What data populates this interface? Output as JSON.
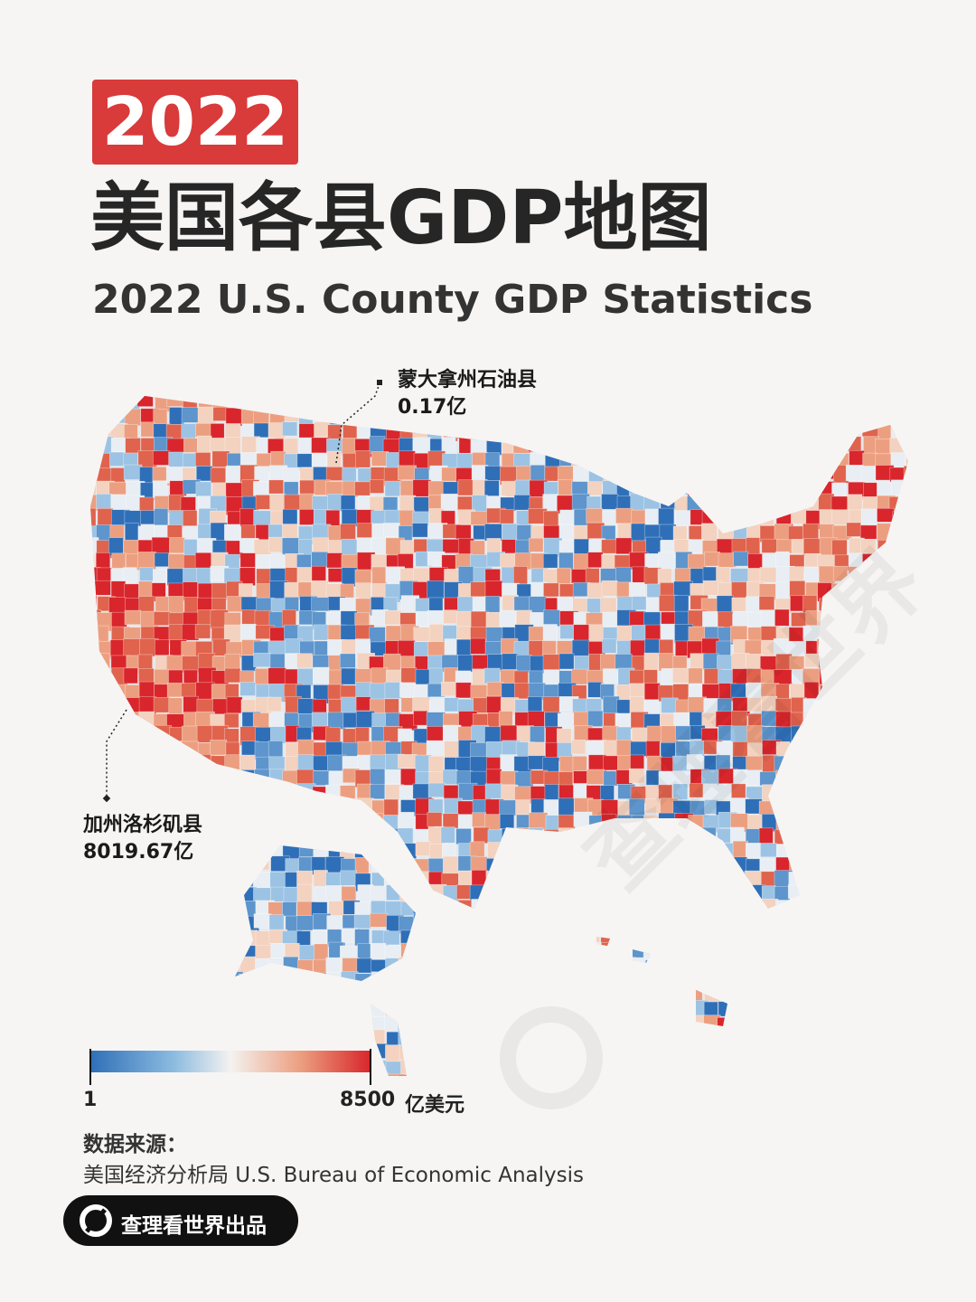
{
  "header": {
    "year": "2022",
    "title": "美国各县GDP地图",
    "subtitle": "2022 U.S. County GDP Statistics"
  },
  "annotations": [
    {
      "name": "蒙大拿州石油县",
      "value": "0.17亿"
    },
    {
      "name": "加州洛杉矶县",
      "value": "8019.67亿"
    }
  ],
  "legend": {
    "min_label": "1",
    "max_label": "8500",
    "unit": "亿美元"
  },
  "source": {
    "label": "数据来源：",
    "text": "美国经济分析局 U.S. Bureau of Economic Analysis"
  },
  "badge": "查理看世界出品",
  "watermark": "查理看世界"
}
